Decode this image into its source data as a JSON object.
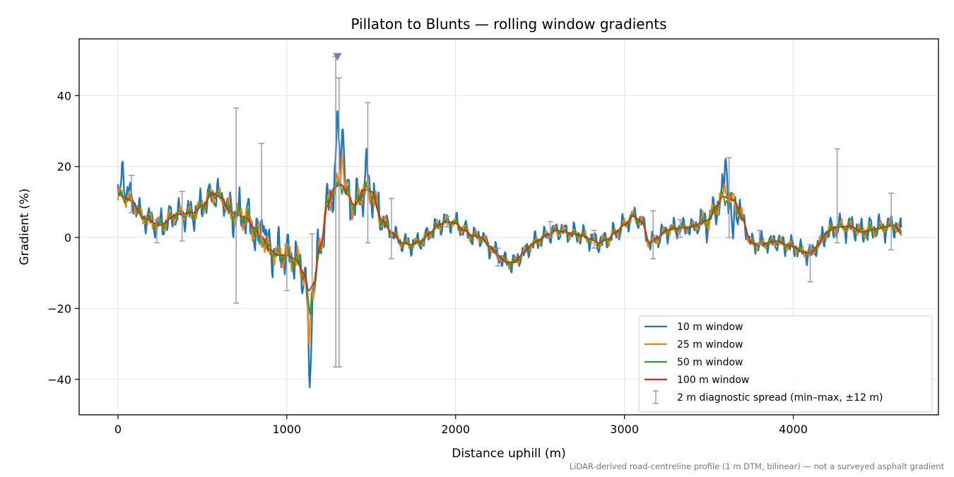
{
  "chart_data": {
    "type": "line",
    "title": "Pillaton to Blunts — rolling window gradients",
    "xlabel": "Distance uphill (m)",
    "ylabel": "Gradient (%)",
    "footnote": "LiDAR-derived road-centreline profile (1 m DTM, bilinear) — not a surveyed asphalt gradient",
    "xlim": [
      -230,
      4860
    ],
    "ylim": [
      -50,
      56
    ],
    "xticks": [
      0,
      1000,
      2000,
      3000,
      4000
    ],
    "yticks": [
      -40,
      -20,
      0,
      20,
      40
    ],
    "grid": true,
    "legend_position": "lower-right",
    "x_start": 0,
    "x_end": 4640,
    "anchors_100": [
      [
        0,
        12
      ],
      [
        80,
        10.5
      ],
      [
        150,
        5.5
      ],
      [
        250,
        3.5
      ],
      [
        350,
        6.5
      ],
      [
        450,
        7
      ],
      [
        500,
        9
      ],
      [
        560,
        12.5
      ],
      [
        620,
        11
      ],
      [
        650,
        8
      ],
      [
        700,
        6.5
      ],
      [
        760,
        5.5
      ],
      [
        800,
        3
      ],
      [
        850,
        0
      ],
      [
        900,
        -3.5
      ],
      [
        950,
        -5
      ],
      [
        1000,
        -5
      ],
      [
        1050,
        -6
      ],
      [
        1100,
        -10
      ],
      [
        1130,
        -15
      ],
      [
        1160,
        -13
      ],
      [
        1200,
        -2
      ],
      [
        1240,
        9
      ],
      [
        1280,
        14
      ],
      [
        1320,
        15
      ],
      [
        1360,
        12
      ],
      [
        1400,
        9
      ],
      [
        1460,
        13.5
      ],
      [
        1500,
        13
      ],
      [
        1560,
        5
      ],
      [
        1620,
        1.5
      ],
      [
        1680,
        -1.5
      ],
      [
        1740,
        -2
      ],
      [
        1800,
        -1
      ],
      [
        1850,
        1.5
      ],
      [
        1900,
        3.5
      ],
      [
        1950,
        4.5
      ],
      [
        2000,
        4
      ],
      [
        2050,
        2
      ],
      [
        2100,
        0.5
      ],
      [
        2150,
        0
      ],
      [
        2200,
        -2.5
      ],
      [
        2250,
        -5
      ],
      [
        2300,
        -7
      ],
      [
        2350,
        -7
      ],
      [
        2400,
        -4.5
      ],
      [
        2450,
        -2
      ],
      [
        2500,
        -0.5
      ],
      [
        2550,
        1
      ],
      [
        2600,
        2
      ],
      [
        2650,
        1.5
      ],
      [
        2700,
        1
      ],
      [
        2750,
        0.5
      ],
      [
        2800,
        -0.5
      ],
      [
        2850,
        -1.5
      ],
      [
        2900,
        -0.5
      ],
      [
        2950,
        1.5
      ],
      [
        3000,
        3.5
      ],
      [
        3050,
        6
      ],
      [
        3100,
        4.5
      ],
      [
        3150,
        -1.5
      ],
      [
        3200,
        0
      ],
      [
        3250,
        2
      ],
      [
        3300,
        2.5
      ],
      [
        3400,
        3
      ],
      [
        3450,
        4
      ],
      [
        3500,
        5
      ],
      [
        3550,
        9
      ],
      [
        3580,
        11.5
      ],
      [
        3650,
        10.5
      ],
      [
        3700,
        5
      ],
      [
        3750,
        -1.5
      ],
      [
        3800,
        -2
      ],
      [
        3850,
        -1.5
      ],
      [
        3900,
        -1
      ],
      [
        3950,
        -2
      ],
      [
        4000,
        -2.5
      ],
      [
        4050,
        -4
      ],
      [
        4100,
        -4.5
      ],
      [
        4150,
        -2
      ],
      [
        4200,
        1.5
      ],
      [
        4250,
        3
      ],
      [
        4300,
        3
      ],
      [
        4350,
        3
      ],
      [
        4400,
        1.5
      ],
      [
        4450,
        2
      ],
      [
        4500,
        2.5
      ],
      [
        4550,
        3
      ],
      [
        4600,
        3.5
      ],
      [
        4640,
        1
      ]
    ],
    "series": [
      {
        "name": "10 m window",
        "color": "#1f77b4",
        "line_width": 2.4,
        "noise_amp": 3.5,
        "spikes": [
          [
            30,
            20
          ],
          [
            60,
            14
          ],
          [
            830,
            -3
          ],
          [
            860,
            9
          ],
          [
            1135,
            -45
          ],
          [
            1300,
            34
          ],
          [
            1330,
            35
          ],
          [
            1475,
            20
          ],
          [
            3600,
            23
          ],
          [
            3640,
            -0.5
          ]
        ]
      },
      {
        "name": "25 m window",
        "color": "#ff7f0e",
        "line_width": 2.0,
        "noise_amp": 2.0,
        "spikes": [
          [
            1132,
            -30
          ],
          [
            1330,
            25
          ],
          [
            3600,
            15
          ]
        ]
      },
      {
        "name": "50 m window",
        "color": "#2ca02c",
        "line_width": 1.9,
        "noise_amp": 1.2,
        "spikes": [
          [
            1135,
            -22
          ],
          [
            840,
            -2
          ],
          [
            3600,
            10
          ]
        ]
      },
      {
        "name": "100 m window",
        "color": "#d62728",
        "line_width": 1.8,
        "noise_amp": 0,
        "spikes": []
      }
    ],
    "diagnostic_spread": {
      "name": "2 m diagnostic spread (min–max, ±12 m)",
      "color": "#9690b8",
      "points": [
        {
          "x": 80,
          "min": 7,
          "max": 17.5
        },
        {
          "x": 230,
          "min": -1.5,
          "max": 5
        },
        {
          "x": 380,
          "min": -1,
          "max": 13
        },
        {
          "x": 700,
          "min": -18.5,
          "max": 36.5
        },
        {
          "x": 850,
          "min": -2,
          "max": 26.5
        },
        {
          "x": 1000,
          "min": -15,
          "max": -2
        },
        {
          "x": 1150,
          "min": -16,
          "max": 1
        },
        {
          "x": 1290,
          "min": -36.5,
          "max": 51
        },
        {
          "x": 1310,
          "min": -36.5,
          "max": 45
        },
        {
          "x": 1480,
          "min": -1.5,
          "max": 38
        },
        {
          "x": 1620,
          "min": -6,
          "max": 11
        },
        {
          "x": 1950,
          "min": 3,
          "max": 6
        },
        {
          "x": 2250,
          "min": -8,
          "max": -3
        },
        {
          "x": 2560,
          "min": 0,
          "max": 4.5
        },
        {
          "x": 2820,
          "min": -3,
          "max": 2
        },
        {
          "x": 3170,
          "min": -6,
          "max": 7.5
        },
        {
          "x": 3330,
          "min": 0,
          "max": 5
        },
        {
          "x": 3620,
          "min": 0,
          "max": 22.5
        },
        {
          "x": 3800,
          "min": -2,
          "max": 2
        },
        {
          "x": 4100,
          "min": -12.5,
          "max": -2
        },
        {
          "x": 4260,
          "min": -1.5,
          "max": 25
        },
        {
          "x": 4580,
          "min": -3.5,
          "max": 12.5
        }
      ]
    },
    "max_marker": {
      "x": 1300,
      "y": 51,
      "color": "#8878aa"
    }
  }
}
